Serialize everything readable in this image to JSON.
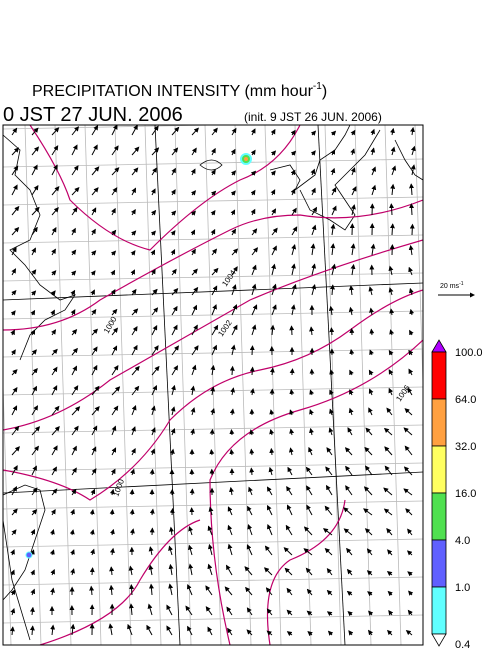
{
  "header": {
    "title": {
      "text": "PRECIPITATION INTENSITY (mm hour",
      "superscript": "-1",
      "close": ")"
    },
    "valid_time": "0 JST 27 JUN. 2006",
    "init_time": "(init. 9 JST 26 JUN. 2006)"
  },
  "vector_scale": {
    "text": "20 ms",
    "superscript": "-1"
  },
  "contour_labels": [
    "1004",
    "1002",
    "1000",
    "1000",
    "1006"
  ],
  "colorbar": {
    "labels": [
      "100.0",
      "64.0",
      "32.0",
      "16.0",
      "4.0",
      "1.0",
      "0.4"
    ],
    "over_color": "#b000ff",
    "colors": [
      "#ff0000",
      "#ffa040",
      "#ffff60",
      "#50e050",
      "#6060ff",
      "#60ffff"
    ],
    "under_color": "#ffffff"
  }
}
